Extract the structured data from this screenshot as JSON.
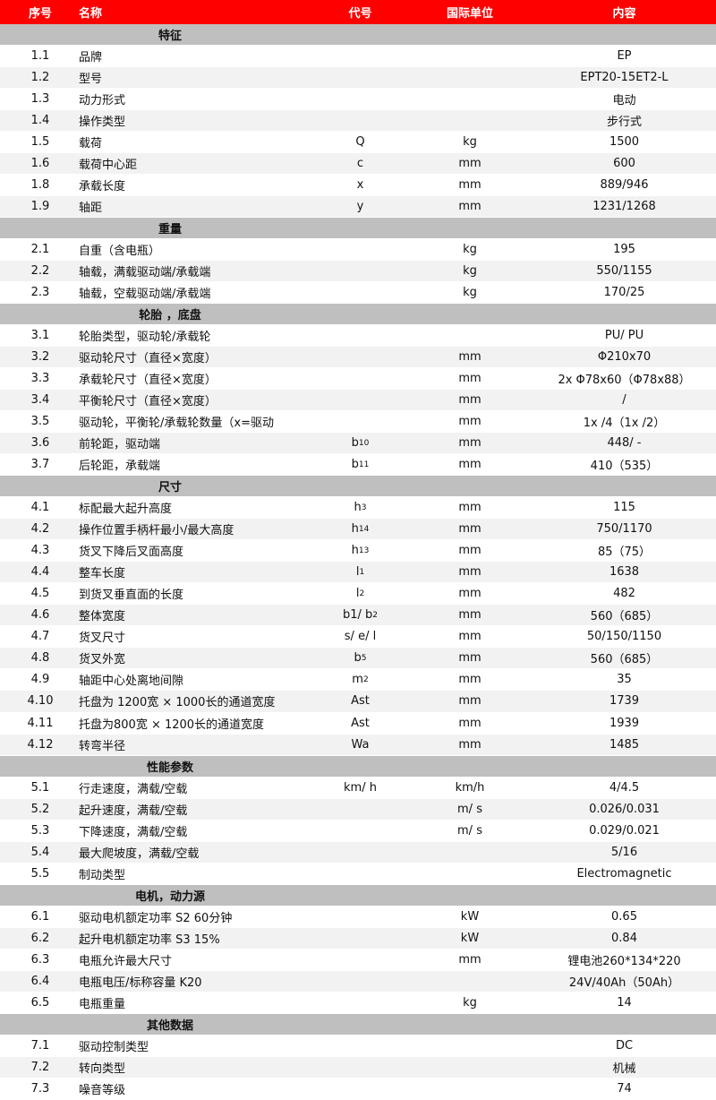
{
  "colors": {
    "header": "#ff0000",
    "section": "#bfbfbf",
    "stripe": "#f2f2f2"
  },
  "header": {
    "seq": "序号",
    "name": "名称",
    "code": "代号",
    "unit": "国际单位",
    "value": "内容"
  },
  "sections": [
    {
      "title": "特征",
      "rows": [
        {
          "seq": "1.1",
          "name": "品牌",
          "code": "",
          "sub": "",
          "unit": "",
          "value": "EP"
        },
        {
          "seq": "1.2",
          "name": "型号",
          "code": "",
          "sub": "",
          "unit": "",
          "value": "EPT20-15ET2-L"
        },
        {
          "seq": "1.3",
          "name": "动力形式",
          "code": "",
          "sub": "",
          "unit": "",
          "value": "电动"
        },
        {
          "seq": "1.4",
          "name": "操作类型",
          "code": "",
          "sub": "",
          "unit": "",
          "value": "步行式"
        },
        {
          "seq": "1.5",
          "name": "载荷",
          "code": "Q",
          "sub": "",
          "unit": "kg",
          "value": "1500"
        },
        {
          "seq": "1.6",
          "name": "载荷中心距",
          "code": "c",
          "sub": "",
          "unit": "mm",
          "value": "600"
        },
        {
          "seq": "1.8",
          "name": "承载长度",
          "code": "x",
          "sub": "",
          "unit": "mm",
          "value": "889/946"
        },
        {
          "seq": "1.9",
          "name": "轴距",
          "code": "y",
          "sub": "",
          "unit": "mm",
          "value": "1231/1268"
        }
      ]
    },
    {
      "title": "重量",
      "rows": [
        {
          "seq": "2.1",
          "name": "自重（含电瓶）",
          "code": "",
          "sub": "",
          "unit": "kg",
          "value": "195"
        },
        {
          "seq": "2.2",
          "name": "轴载，满载驱动端/承载端",
          "code": "",
          "sub": "",
          "unit": "kg",
          "value": "550/1155"
        },
        {
          "seq": "2.3",
          "name": "轴载，空载驱动端/承载端",
          "code": "",
          "sub": "",
          "unit": "kg",
          "value": "170/25"
        }
      ]
    },
    {
      "title": "轮胎 ，底盘",
      "rows": [
        {
          "seq": "3.1",
          "name": "轮胎类型，驱动轮/承载轮",
          "code": "",
          "sub": "",
          "unit": "",
          "value": "PU/ PU"
        },
        {
          "seq": "3.2",
          "name": "驱动轮尺寸（直径×宽度）",
          "code": "",
          "sub": "",
          "unit": "mm",
          "value": "Φ210x70"
        },
        {
          "seq": "3.3",
          "name": "承载轮尺寸（直径×宽度）",
          "code": "",
          "sub": "",
          "unit": "mm",
          "value": "2x Φ78x60（Φ78x88）"
        },
        {
          "seq": "3.4",
          "name": "平衡轮尺寸（直径×宽度）",
          "code": "",
          "sub": "",
          "unit": "mm",
          "value": "/"
        },
        {
          "seq": "3.5",
          "name": "驱动轮，平衡轮/承载轮数量（x=驱动",
          "code": "",
          "sub": "",
          "unit": "mm",
          "value": "1x /4（1x /2）"
        },
        {
          "seq": "3.6",
          "name": "前轮距，驱动端",
          "code": "b",
          "sub": "10",
          "unit": "mm",
          "value": "448/ -"
        },
        {
          "seq": "3.7",
          "name": "后轮距，承载端",
          "code": "b",
          "sub": "11",
          "unit": "mm",
          "value": "410（535）"
        }
      ]
    },
    {
      "title": "尺寸",
      "rows": [
        {
          "seq": "4.1",
          "name": "标配最大起升高度",
          "code": "h",
          "sub": "3",
          "unit": "mm",
          "value": "115"
        },
        {
          "seq": "4.2",
          "name": "操作位置手柄杆最小/最大高度",
          "code": "h",
          "sub": "14",
          "unit": "mm",
          "value": "750/1170"
        },
        {
          "seq": "4.3",
          "name": "货叉下降后叉面高度",
          "code": "h",
          "sub": "13",
          "unit": "mm",
          "value": "85（75）"
        },
        {
          "seq": "4.4",
          "name": "整车长度",
          "code": "l",
          "sub": "1",
          "unit": "mm",
          "value": "1638"
        },
        {
          "seq": "4.5",
          "name": "到货叉垂直面的长度",
          "code": "l",
          "sub": "2",
          "unit": "mm",
          "value": "482"
        },
        {
          "seq": "4.6",
          "name": "整体宽度",
          "code": "b1/ b",
          "sub": "2",
          "unit": "mm",
          "value": "560（685）"
        },
        {
          "seq": "4.7",
          "name": "货叉尺寸",
          "code": "s/ e/ l",
          "sub": "",
          "unit": "mm",
          "value": "50/150/1150"
        },
        {
          "seq": "4.8",
          "name": "货叉外宽",
          "code": "b",
          "sub": "5",
          "unit": "mm",
          "value": "560（685）"
        },
        {
          "seq": "4.9",
          "name": "轴距中心处离地间隙",
          "code": "m",
          "sub": "2",
          "unit": "mm",
          "value": "35"
        },
        {
          "seq": "4.10",
          "name": "托盘为 1200宽 × 1000长的通道宽度",
          "code": "Ast",
          "sub": "",
          "unit": "mm",
          "value": "1739"
        },
        {
          "seq": "4.11",
          "name": "托盘为800宽 × 1200长的通道宽度",
          "code": "Ast",
          "sub": "",
          "unit": "mm",
          "value": "1939"
        },
        {
          "seq": "4.12",
          "name": "转弯半径",
          "code": "Wa",
          "sub": "",
          "unit": "mm",
          "value": "1485"
        }
      ]
    },
    {
      "title": "性能参数",
      "rows": [
        {
          "seq": "5.1",
          "name": "行走速度，满载/空载",
          "code": "km/ h",
          "sub": "",
          "unit": "km/h",
          "value": "4/4.5"
        },
        {
          "seq": "5.2",
          "name": "起升速度，满载/空载",
          "code": "",
          "sub": "",
          "unit": "m/ s",
          "value": "0.026/0.031"
        },
        {
          "seq": "5.3",
          "name": "下降速度，满载/空载",
          "code": "",
          "sub": "",
          "unit": "m/ s",
          "value": "0.029/0.021"
        },
        {
          "seq": "5.4",
          "name": "最大爬坡度，满载/空载",
          "code": "",
          "sub": "",
          "unit": "",
          "value": "5/16"
        },
        {
          "seq": "5.5",
          "name": "制动类型",
          "code": "",
          "sub": "",
          "unit": "",
          "value": "Electromagnetic"
        }
      ]
    },
    {
      "title": "电机，动力源",
      "rows": [
        {
          "seq": "6.1",
          "name": "驱动电机额定功率 S2 60分钟",
          "code": "",
          "sub": "",
          "unit": "kW",
          "value": "0.65"
        },
        {
          "seq": "6.2",
          "name": "起升电机额定功率 S3 15%",
          "code": "",
          "sub": "",
          "unit": "kW",
          "value": "0.84"
        },
        {
          "seq": "6.3",
          "name": "电瓶允许最大尺寸",
          "code": "",
          "sub": "",
          "unit": "mm",
          "value": "锂电池260*134*220"
        },
        {
          "seq": "6.4",
          "name": "电瓶电压/标称容量 K20",
          "code": "",
          "sub": "",
          "unit": "",
          "value": "24V/40Ah（50Ah）"
        },
        {
          "seq": "6.5",
          "name": "电瓶重量",
          "code": "",
          "sub": "",
          "unit": "kg",
          "value": "14"
        }
      ]
    },
    {
      "title": "其他数据",
      "rows": [
        {
          "seq": "7.1",
          "name": "驱动控制类型",
          "code": "",
          "sub": "",
          "unit": "",
          "value": "DC"
        },
        {
          "seq": "7.2",
          "name": "转向类型",
          "code": "",
          "sub": "",
          "unit": "",
          "value": "机械"
        },
        {
          "seq": "7.3",
          "name": "噪音等级",
          "code": "",
          "sub": "",
          "unit": "",
          "value": "74"
        }
      ]
    }
  ]
}
